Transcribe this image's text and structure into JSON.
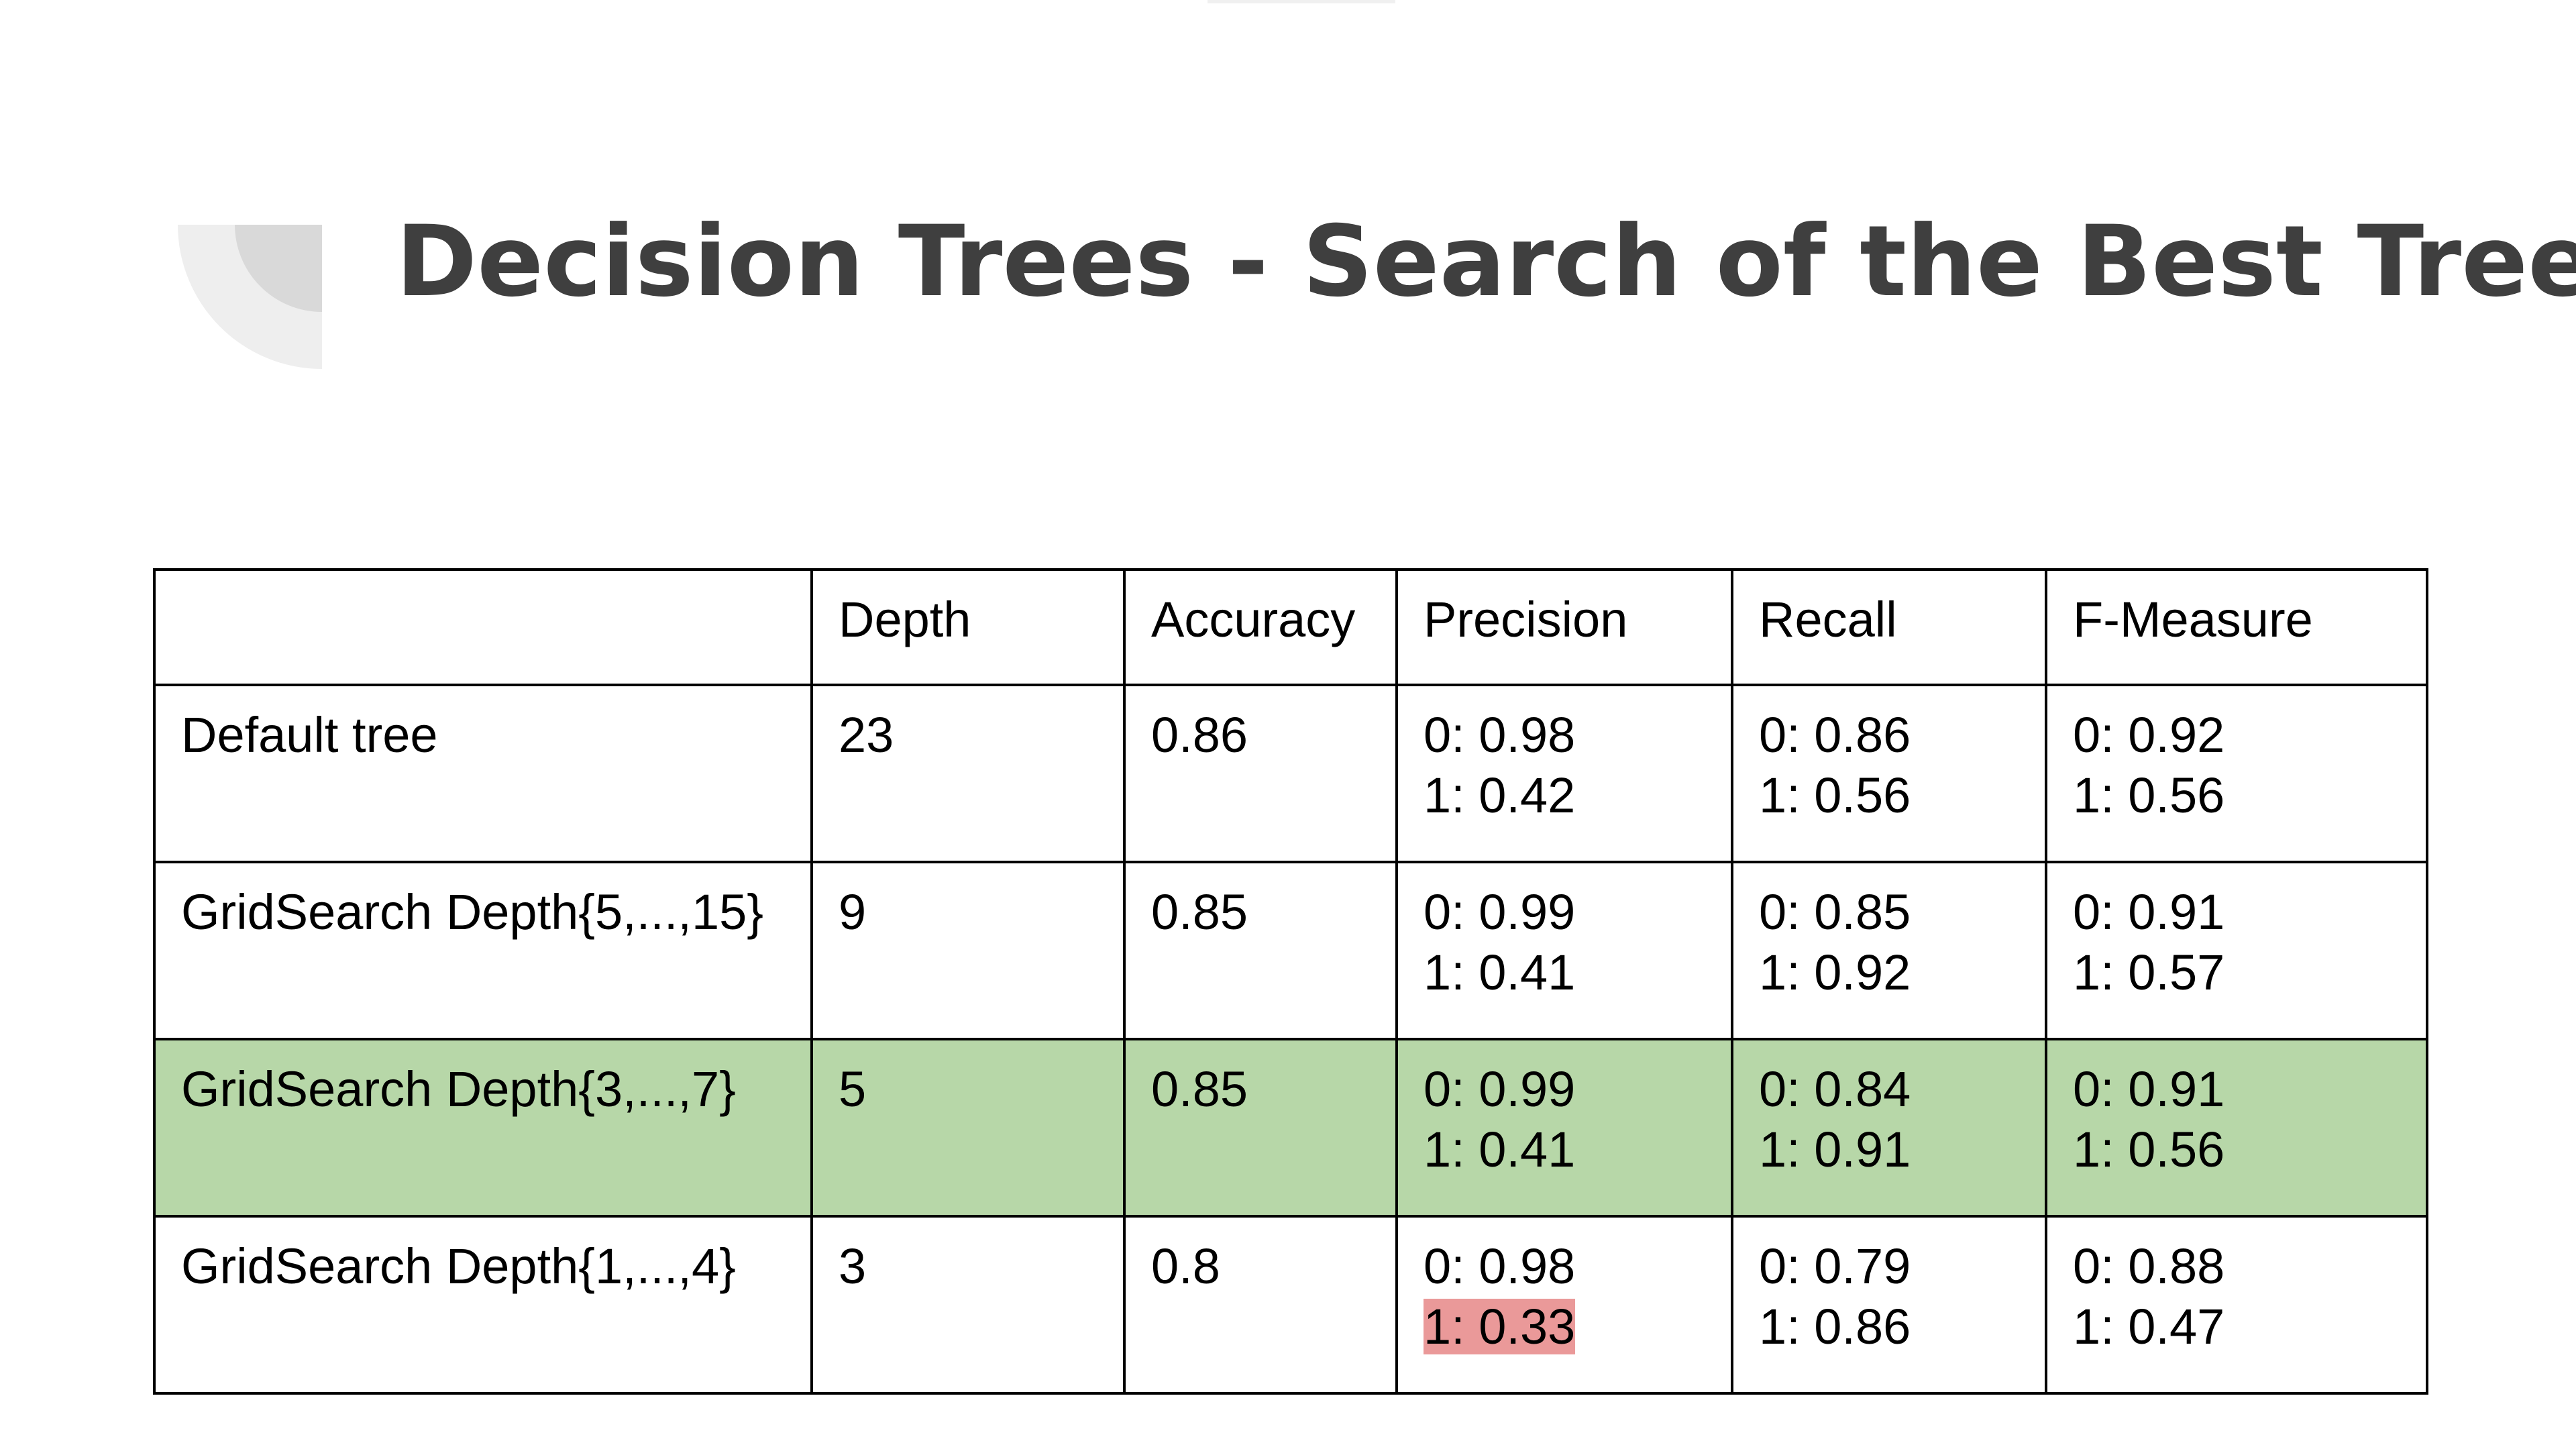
{
  "slide": {
    "title": "Decision Trees - Search of the Best Tree"
  },
  "colors": {
    "best_row_highlight": "#b7d7a8",
    "low_value_highlight": "#ea9999",
    "title_text": "#3f3f3f"
  },
  "table": {
    "headers": [
      "",
      "Depth",
      "Accuracy",
      "Precision",
      "Recall",
      "F-Measure"
    ],
    "rows": [
      {
        "model": "Default tree",
        "depth": "23",
        "accuracy": "0.86",
        "precision": [
          "0: 0.98",
          "1: 0.42"
        ],
        "recall": [
          "0: 0.86",
          "1: 0.56"
        ],
        "fmeasure": [
          "0: 0.92",
          "1: 0.56"
        ]
      },
      {
        "model": "GridSearch Depth{5,...,15}",
        "depth": "9",
        "accuracy": "0.85",
        "precision": [
          "0: 0.99",
          "1: 0.41"
        ],
        "recall": [
          "0: 0.85",
          "1: 0.92"
        ],
        "fmeasure": [
          "0: 0.91",
          "1: 0.57"
        ]
      },
      {
        "model": "GridSearch Depth{3,...,7}",
        "depth": "5",
        "accuracy": "0.85",
        "precision": [
          "0: 0.99",
          "1: 0.41"
        ],
        "recall": [
          "0: 0.84",
          "1: 0.91"
        ],
        "fmeasure": [
          "0: 0.91",
          "1: 0.56"
        ]
      },
      {
        "model": "GridSearch Depth{1,...,4}",
        "depth": "3",
        "accuracy": "0.8",
        "precision": [
          "0: 0.98",
          "1: 0.33"
        ],
        "recall": [
          "0: 0.79",
          "1: 0.86"
        ],
        "fmeasure": [
          "0: 0.88",
          "1: 0.47"
        ]
      }
    ]
  }
}
